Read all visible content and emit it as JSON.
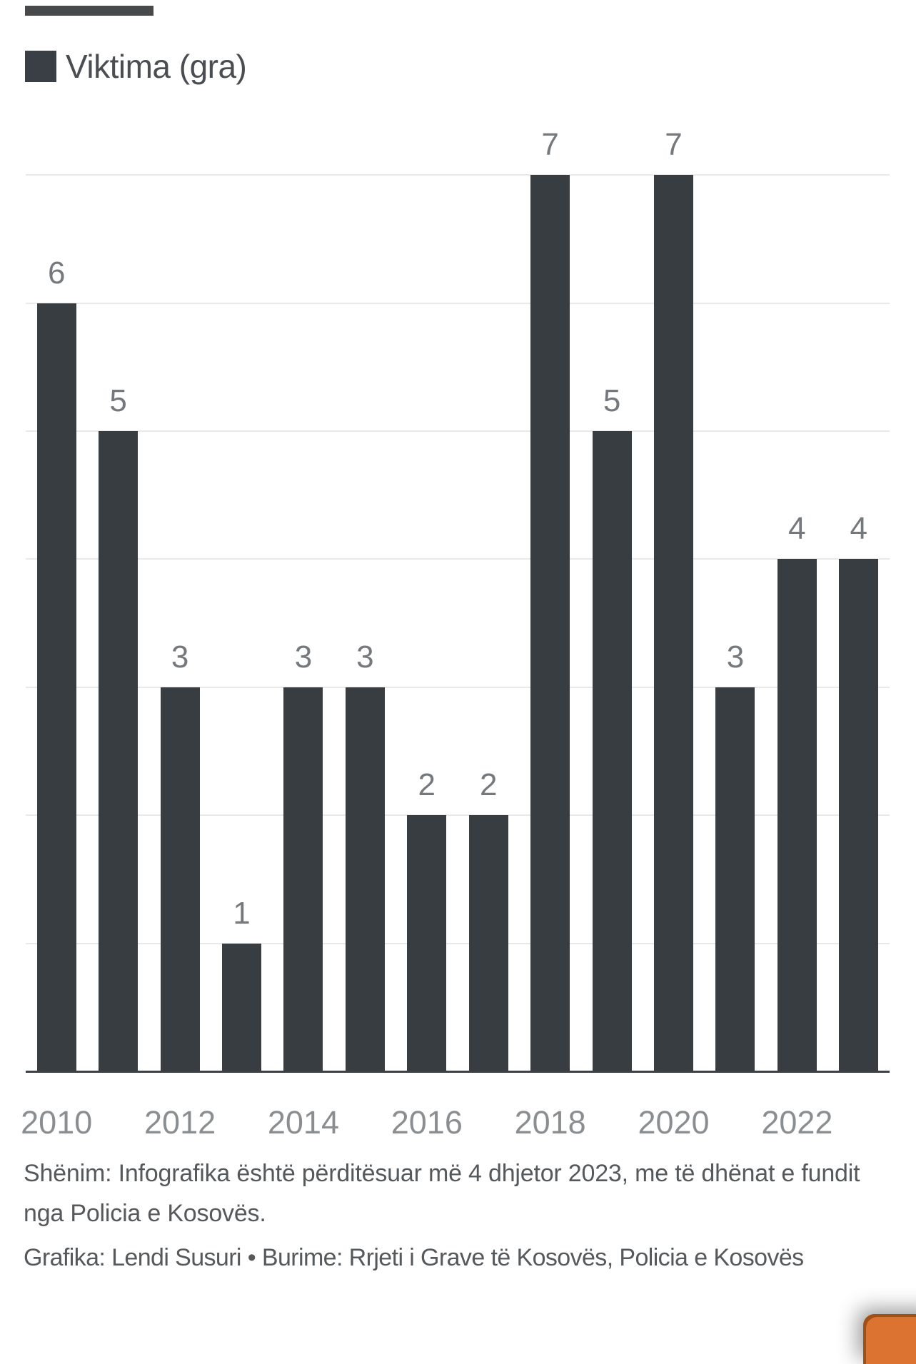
{
  "header_bar": {
    "color": "#47494b"
  },
  "legend": {
    "label": "Viktima (gra)",
    "swatch_color": "#3a3f45"
  },
  "chart_data": {
    "type": "bar",
    "title": "",
    "legend_entries": [
      "Viktima (gra)"
    ],
    "categories": [
      "2010",
      "2011",
      "2012",
      "2013",
      "2014",
      "2015",
      "2016",
      "2017",
      "2018",
      "2019",
      "2020",
      "2021",
      "2022",
      "2023"
    ],
    "values": [
      6,
      5,
      3,
      1,
      3,
      3,
      2,
      2,
      7,
      5,
      7,
      3,
      4,
      4
    ],
    "x_tick_labels": [
      "2010",
      "2012",
      "2014",
      "2016",
      "2018",
      "2020",
      "2022"
    ],
    "xlabel": "",
    "ylabel": "",
    "ylim": [
      0,
      7
    ],
    "grid": "horizontal, 1-unit steps, no y tick labels",
    "value_labels_shown": true,
    "bar_color": "#383d42",
    "value_label_color": "#75797d",
    "tick_label_color": "#8b8e90",
    "gridline_color": "#e9e9e9",
    "axis_line_color": "#3d4145"
  },
  "notes": {
    "note": "Shënim: Infografika është përditësuar më 4 dhjetor 2023, me të dhënat e fundit nga Policia e Kosovës.",
    "credit": "Grafika: Lendi Susuri • Burime: Rrjeti i Grave të Kosovës, Policia e Kosovës"
  },
  "embed_button": {
    "color": "#dd7330",
    "edge_color": "#a95c1e"
  }
}
